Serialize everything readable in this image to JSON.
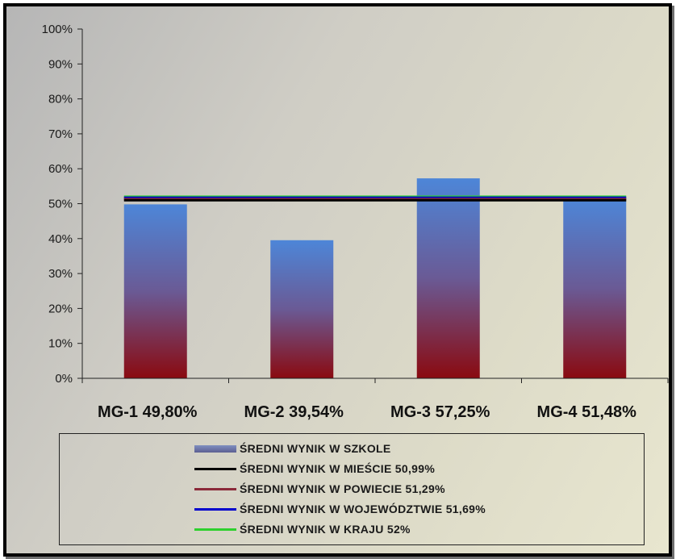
{
  "chart_data": {
    "type": "bar",
    "categories": [
      "MG-1 49,80%",
      "MG-2 39,54%",
      "MG-3 57,25%",
      "MG-4 51,48%"
    ],
    "series": [
      {
        "name": "ŚREDNI WYNIK W SZKOLE",
        "values": [
          49.8,
          39.54,
          57.25,
          51.48
        ],
        "color": "#4f7fd3"
      }
    ],
    "reference_lines": [
      {
        "name": "ŚREDNI WYNIK W MIEŚCIE 50,99%",
        "value": 50.99,
        "color": "#000000"
      },
      {
        "name": "ŚREDNI WYNIK W POWIECIE 51,29%",
        "value": 51.29,
        "color": "#8b2a3a"
      },
      {
        "name": "ŚREDNI WYNIK W WOJEWÓDZTWIE 51,69%",
        "value": 51.69,
        "color": "#0000cc"
      },
      {
        "name": "ŚREDNI WYNIK W KRAJU 52%",
        "value": 52,
        "color": "#2ed02e"
      }
    ],
    "y_ticks": [
      "0%",
      "10%",
      "20%",
      "30%",
      "40%",
      "50%",
      "60%",
      "70%",
      "80%",
      "90%",
      "100%"
    ],
    "ylim": [
      0,
      100
    ],
    "grid": false,
    "legend_position": "bottom"
  }
}
